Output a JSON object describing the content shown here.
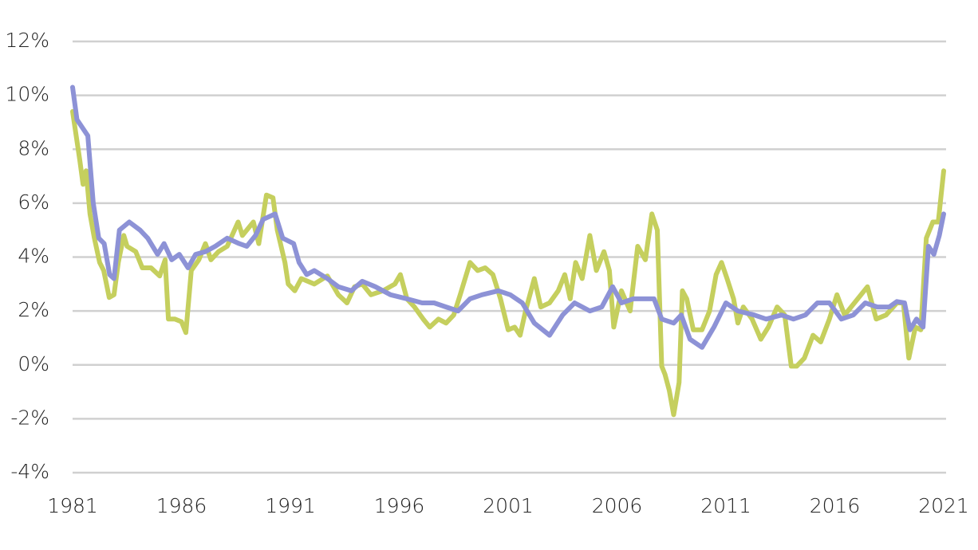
{
  "chart_data": {
    "type": "line",
    "xlim": [
      1981,
      2021
    ],
    "xticks": [
      1981,
      1986,
      1991,
      1996,
      2001,
      2006,
      2011,
      2016,
      2021
    ],
    "ylim": [
      -4,
      12
    ],
    "yticks": [
      {
        "value": -4,
        "label": "-4%"
      },
      {
        "value": -2,
        "label": "-2%"
      },
      {
        "value": 0,
        "label": "0%"
      },
      {
        "value": 2,
        "label": "2%"
      },
      {
        "value": 4,
        "label": "4%"
      },
      {
        "value": 6,
        "label": "6%"
      },
      {
        "value": 8,
        "label": "8%"
      },
      {
        "value": 10,
        "label": "10%"
      },
      {
        "value": 12,
        "label": "12%"
      }
    ],
    "grid": true,
    "series": [
      {
        "color": "#c5cf5e",
        "x": [
          1981.0,
          1981.33,
          1981.48,
          1981.62,
          1981.8,
          1982.0,
          1982.24,
          1982.43,
          1982.68,
          1982.9,
          1983.1,
          1983.35,
          1983.5,
          1983.9,
          1984.2,
          1984.6,
          1985.0,
          1985.25,
          1985.4,
          1985.7,
          1986.0,
          1986.2,
          1986.45,
          1986.8,
          1987.1,
          1987.35,
          1987.7,
          1988.1,
          1988.6,
          1988.8,
          1989.3,
          1989.55,
          1989.9,
          1990.2,
          1990.4,
          1990.75,
          1990.9,
          1991.2,
          1991.5,
          1992.1,
          1992.7,
          1993.2,
          1993.6,
          1993.95,
          1994.3,
          1994.7,
          1995.25,
          1995.8,
          1996.05,
          1996.35,
          1996.7,
          1997.1,
          1997.4,
          1997.8,
          1998.15,
          1998.5,
          1998.8,
          1999.25,
          1999.6,
          1999.95,
          2000.3,
          2000.65,
          2001.0,
          2001.3,
          2001.55,
          2001.8,
          2002.2,
          2002.5,
          2002.9,
          2003.3,
          2003.6,
          2003.85,
          2004.1,
          2004.4,
          2004.75,
          2005.05,
          2005.4,
          2005.65,
          2005.85,
          2006.2,
          2006.6,
          2006.95,
          2007.3,
          2007.6,
          2007.85,
          2008.05,
          2008.2,
          2008.4,
          2008.6,
          2008.85,
          2009.0,
          2009.2,
          2009.5,
          2009.9,
          2010.25,
          2010.55,
          2010.8,
          2011.05,
          2011.35,
          2011.55,
          2011.8,
          2012.2,
          2012.6,
          2012.95,
          2013.35,
          2013.7,
          2014.0,
          2014.25,
          2014.6,
          2015.0,
          2015.35,
          2015.75,
          2016.1,
          2016.45,
          2016.9,
          2017.5,
          2017.9,
          2018.35,
          2018.85,
          2019.15,
          2019.4,
          2019.7,
          2019.95,
          2020.2,
          2020.5,
          2020.75,
          2021.0
        ],
        "values": [
          9.4,
          7.6,
          6.7,
          7.2,
          5.6,
          4.7,
          3.8,
          3.5,
          2.5,
          2.6,
          3.8,
          4.8,
          4.4,
          4.2,
          3.6,
          3.6,
          3.3,
          3.9,
          1.7,
          1.7,
          1.6,
          1.2,
          3.5,
          3.9,
          4.5,
          3.9,
          4.2,
          4.4,
          5.3,
          4.8,
          5.3,
          4.5,
          6.3,
          6.2,
          5.0,
          3.8,
          3.0,
          2.75,
          3.2,
          3.0,
          3.3,
          2.6,
          2.3,
          2.9,
          3.0,
          2.6,
          2.75,
          3.0,
          3.35,
          2.45,
          2.15,
          1.7,
          1.4,
          1.7,
          1.55,
          1.85,
          2.6,
          3.8,
          3.5,
          3.6,
          3.35,
          2.45,
          1.3,
          1.4,
          1.1,
          2.0,
          3.2,
          2.15,
          2.3,
          2.75,
          3.35,
          2.45,
          3.8,
          3.2,
          4.8,
          3.5,
          4.2,
          3.5,
          1.4,
          2.75,
          2.0,
          4.4,
          3.9,
          5.6,
          5.0,
          -0.05,
          -0.35,
          -0.95,
          -1.85,
          -0.65,
          2.75,
          2.45,
          1.3,
          1.3,
          2.0,
          3.35,
          3.8,
          3.2,
          2.45,
          1.55,
          2.15,
          1.7,
          0.95,
          1.4,
          2.15,
          1.85,
          -0.05,
          -0.05,
          0.25,
          1.1,
          0.85,
          1.7,
          2.6,
          1.85,
          2.3,
          2.9,
          1.7,
          1.85,
          2.3,
          2.3,
          0.25,
          1.4,
          1.3,
          4.7,
          5.3,
          5.3,
          7.2
        ]
      },
      {
        "color": "#8d92d6",
        "x": [
          1981.0,
          1981.2,
          1981.45,
          1981.7,
          1981.95,
          1982.2,
          1982.45,
          1982.7,
          1982.9,
          1983.15,
          1983.6,
          1984.1,
          1984.45,
          1984.9,
          1985.2,
          1985.55,
          1985.9,
          1986.3,
          1986.65,
          1987.1,
          1987.55,
          1988.1,
          1988.65,
          1989.0,
          1989.4,
          1989.75,
          1990.3,
          1990.65,
          1991.15,
          1991.4,
          1991.75,
          1992.1,
          1992.7,
          1993.2,
          1993.8,
          1994.3,
          1994.9,
          1995.6,
          1996.35,
          1997.05,
          1997.6,
          1998.15,
          1998.7,
          1999.25,
          1999.8,
          2000.55,
          2001.1,
          2001.65,
          2002.2,
          2002.9,
          2003.5,
          2004.05,
          2004.75,
          2005.3,
          2005.8,
          2006.2,
          2006.75,
          2007.7,
          2008.05,
          2008.6,
          2008.95,
          2009.35,
          2009.9,
          2010.45,
          2011.0,
          2011.55,
          2012.3,
          2012.85,
          2013.55,
          2014.1,
          2014.65,
          2015.2,
          2015.75,
          2016.3,
          2016.85,
          2017.4,
          2017.95,
          2018.5,
          2018.85,
          2019.2,
          2019.45,
          2019.75,
          2020.05,
          2020.3,
          2020.55,
          2020.8,
          2021.0
        ],
        "values": [
          10.3,
          9.1,
          8.8,
          8.5,
          6.0,
          4.7,
          4.5,
          3.35,
          3.2,
          5.0,
          5.3,
          5.0,
          4.7,
          4.1,
          4.5,
          3.9,
          4.1,
          3.6,
          4.1,
          4.2,
          4.4,
          4.7,
          4.5,
          4.4,
          4.8,
          5.4,
          5.6,
          4.7,
          4.5,
          3.8,
          3.35,
          3.5,
          3.2,
          2.9,
          2.75,
          3.1,
          2.9,
          2.6,
          2.45,
          2.3,
          2.3,
          2.15,
          2.0,
          2.45,
          2.6,
          2.75,
          2.6,
          2.3,
          1.55,
          1.1,
          1.85,
          2.3,
          2.0,
          2.15,
          2.9,
          2.3,
          2.45,
          2.45,
          1.7,
          1.55,
          1.85,
          0.95,
          0.65,
          1.4,
          2.3,
          2.0,
          1.85,
          1.7,
          1.85,
          1.7,
          1.85,
          2.3,
          2.3,
          1.7,
          1.85,
          2.3,
          2.15,
          2.15,
          2.35,
          2.3,
          1.3,
          1.7,
          1.4,
          4.4,
          4.1,
          4.8,
          5.6
        ]
      }
    ]
  }
}
